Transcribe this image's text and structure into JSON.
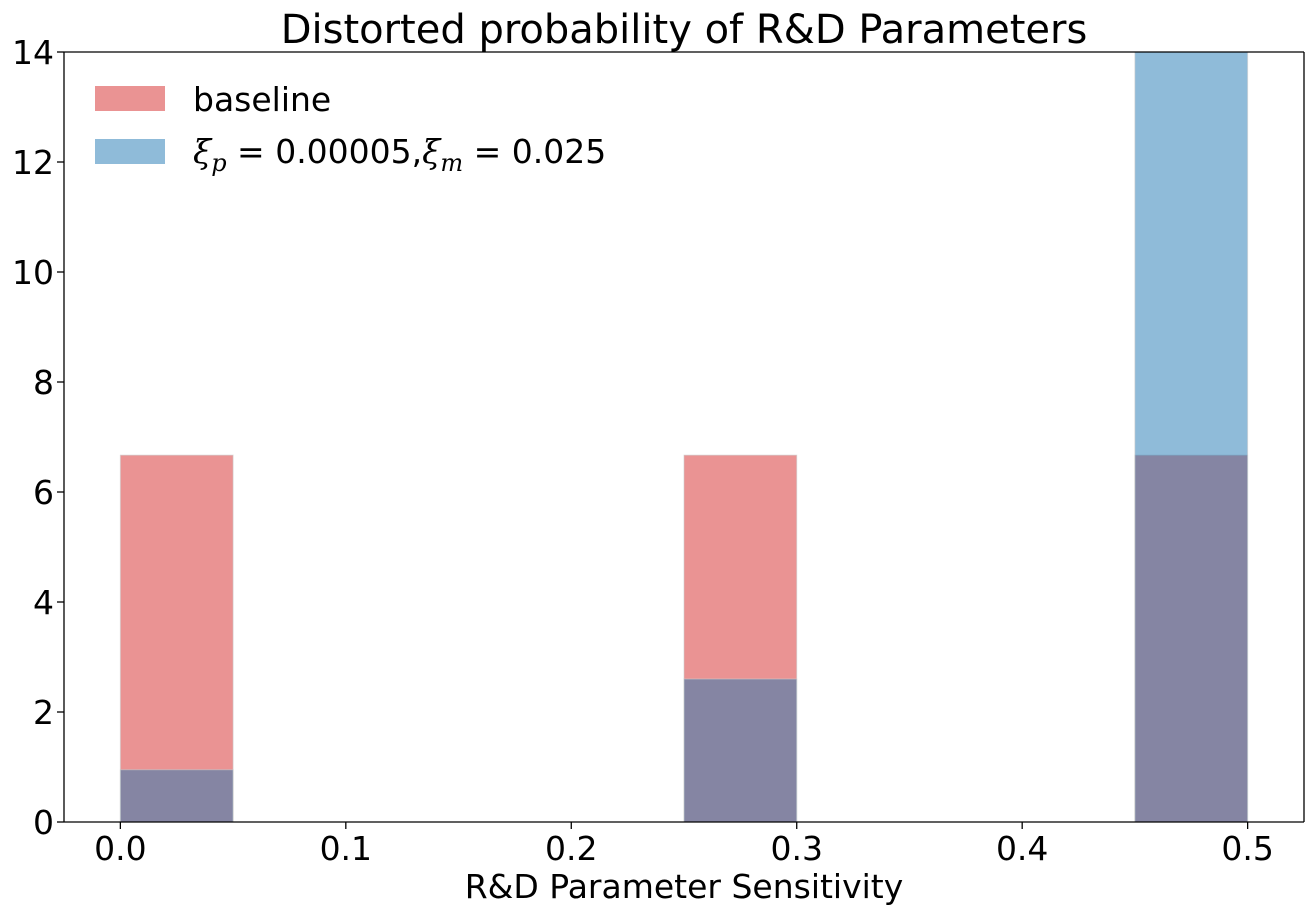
{
  "chart_data": {
    "type": "bar",
    "title": "Distorted probability of R&D Parameters",
    "xlabel": "R&D Parameter Sensitivity",
    "ylabel": "",
    "xlim": [
      -0.025,
      0.525
    ],
    "ylim": [
      0,
      14
    ],
    "xticks": [
      "0.0",
      "0.1",
      "0.2",
      "0.3",
      "0.4",
      "0.5"
    ],
    "yticks": [
      "0",
      "2",
      "4",
      "6",
      "8",
      "10",
      "12",
      "14"
    ],
    "bin_width": 0.05,
    "bins_left": [
      0.0,
      0.25,
      0.45
    ],
    "grid": false,
    "legend_position": "upper-left",
    "series": [
      {
        "name": "baseline",
        "values": [
          6.67,
          6.67,
          6.67
        ],
        "color": "#d62728"
      },
      {
        "name": "ξp = 0.00005,ξm = 0.025",
        "name_parts": {
          "xi": "ξ",
          "sub_p": "p",
          "eq_p": " = 0.00005,",
          "sub_m": "m",
          "eq_m": " = 0.025"
        },
        "values": [
          0.95,
          2.6,
          14.0
        ],
        "color": "#1f77b4"
      }
    ]
  }
}
